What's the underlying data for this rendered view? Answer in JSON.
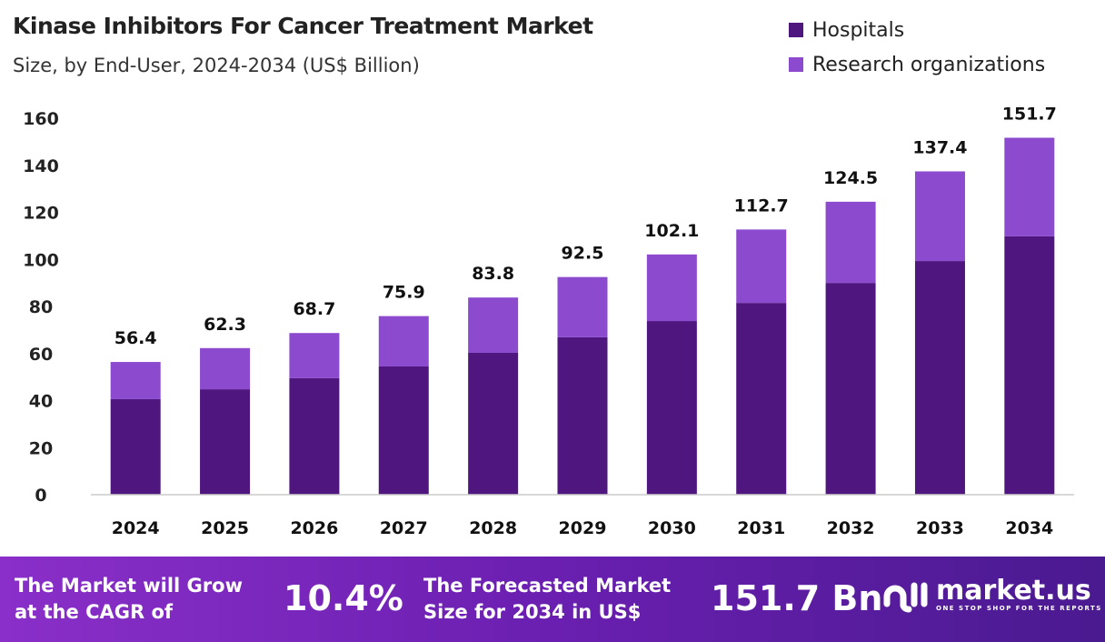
{
  "chart_data": {
    "type": "bar",
    "stacked": true,
    "title": "Kinase Inhibitors For Cancer Treatment Market",
    "subtitle": "Size, by End-User, 2024-2034 (US$ Billion)",
    "categories": [
      "2024",
      "2025",
      "2026",
      "2027",
      "2028",
      "2029",
      "2030",
      "2031",
      "2032",
      "2033",
      "2034"
    ],
    "series": [
      {
        "name": "Hospitals",
        "color": "#4f1680",
        "values": [
          40.6,
          44.8,
          49.5,
          54.5,
          60.3,
          66.9,
          73.8,
          81.5,
          90.0,
          99.3,
          109.8
        ]
      },
      {
        "name": "Research organizations",
        "color": "#8c4bcf",
        "values": [
          15.8,
          17.5,
          19.2,
          21.4,
          23.5,
          25.6,
          28.3,
          31.2,
          34.5,
          38.1,
          41.9
        ]
      }
    ],
    "totals": [
      "56.4",
      "62.3",
      "68.7",
      "75.9",
      "83.8",
      "92.5",
      "102.1",
      "112.7",
      "124.5",
      "137.4",
      "151.7"
    ],
    "ylim": [
      0,
      160
    ],
    "yticks": [
      "0",
      "20",
      "40",
      "60",
      "80",
      "100",
      "120",
      "140",
      "160"
    ],
    "grid": false,
    "legend_position": "top-right"
  },
  "footer": {
    "cagr_label_1": "The Market will Grow",
    "cagr_label_2": "at the CAGR of",
    "cagr_value": "10.4%",
    "forecast_label_1": "The Forecasted Market",
    "forecast_label_2": "Size for 2034 in US$",
    "forecast_value": "151.7 Bn",
    "logo_text": "market.us",
    "logo_tagline": "ONE STOP SHOP FOR THE REPORTS"
  }
}
